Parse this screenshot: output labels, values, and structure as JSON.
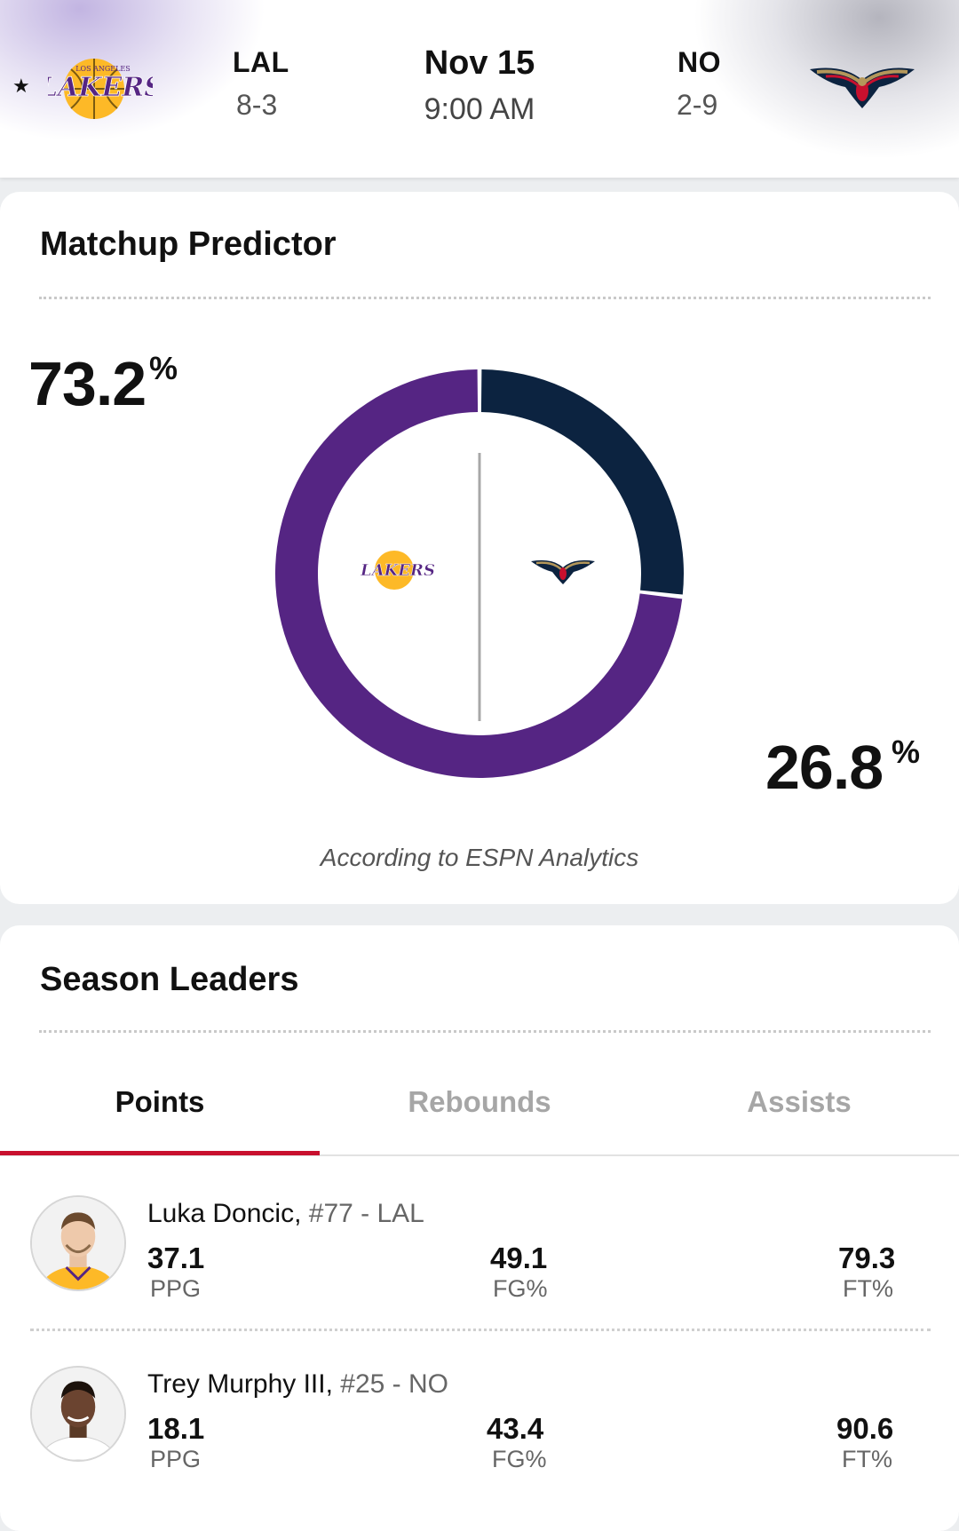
{
  "header": {
    "favorite_icon": "star-icon",
    "away": {
      "abbr": "LAL",
      "record": "8-3",
      "logo": "lakers-logo"
    },
    "home": {
      "abbr": "NO",
      "record": "2-9",
      "logo": "pelicans-logo"
    },
    "date": "Nov 15",
    "time": "9:00 AM"
  },
  "predictor": {
    "title": "Matchup Predictor",
    "away_pct": "73.2",
    "home_pct": "26.8",
    "pct_sign": "%",
    "source": "According to ESPN Analytics",
    "colors": {
      "away": "#552583",
      "home": "#0c2340"
    }
  },
  "chart_data": {
    "type": "pie",
    "categories": [
      "LAL",
      "NO"
    ],
    "values": [
      73.2,
      26.8
    ],
    "colors": [
      "#552583",
      "#0c2340"
    ]
  },
  "leaders": {
    "title": "Season Leaders",
    "tabs": [
      {
        "label": "Points",
        "active": true
      },
      {
        "label": "Rebounds",
        "active": false
      },
      {
        "label": "Assists",
        "active": false
      }
    ],
    "accent_color": "#c8102e",
    "players": [
      {
        "name": "Luka Doncic,",
        "meta": " #77 - LAL",
        "stats": [
          {
            "value": "37.1",
            "label": "PPG"
          },
          {
            "value": "49.1",
            "label": "FG%"
          },
          {
            "value": "79.3",
            "label": "FT%"
          }
        ]
      },
      {
        "name": "Trey Murphy III,",
        "meta": " #25 - NO",
        "stats": [
          {
            "value": "18.1",
            "label": "PPG"
          },
          {
            "value": "43.4",
            "label": "FG%"
          },
          {
            "value": "90.6",
            "label": "FT%"
          }
        ]
      }
    ]
  }
}
